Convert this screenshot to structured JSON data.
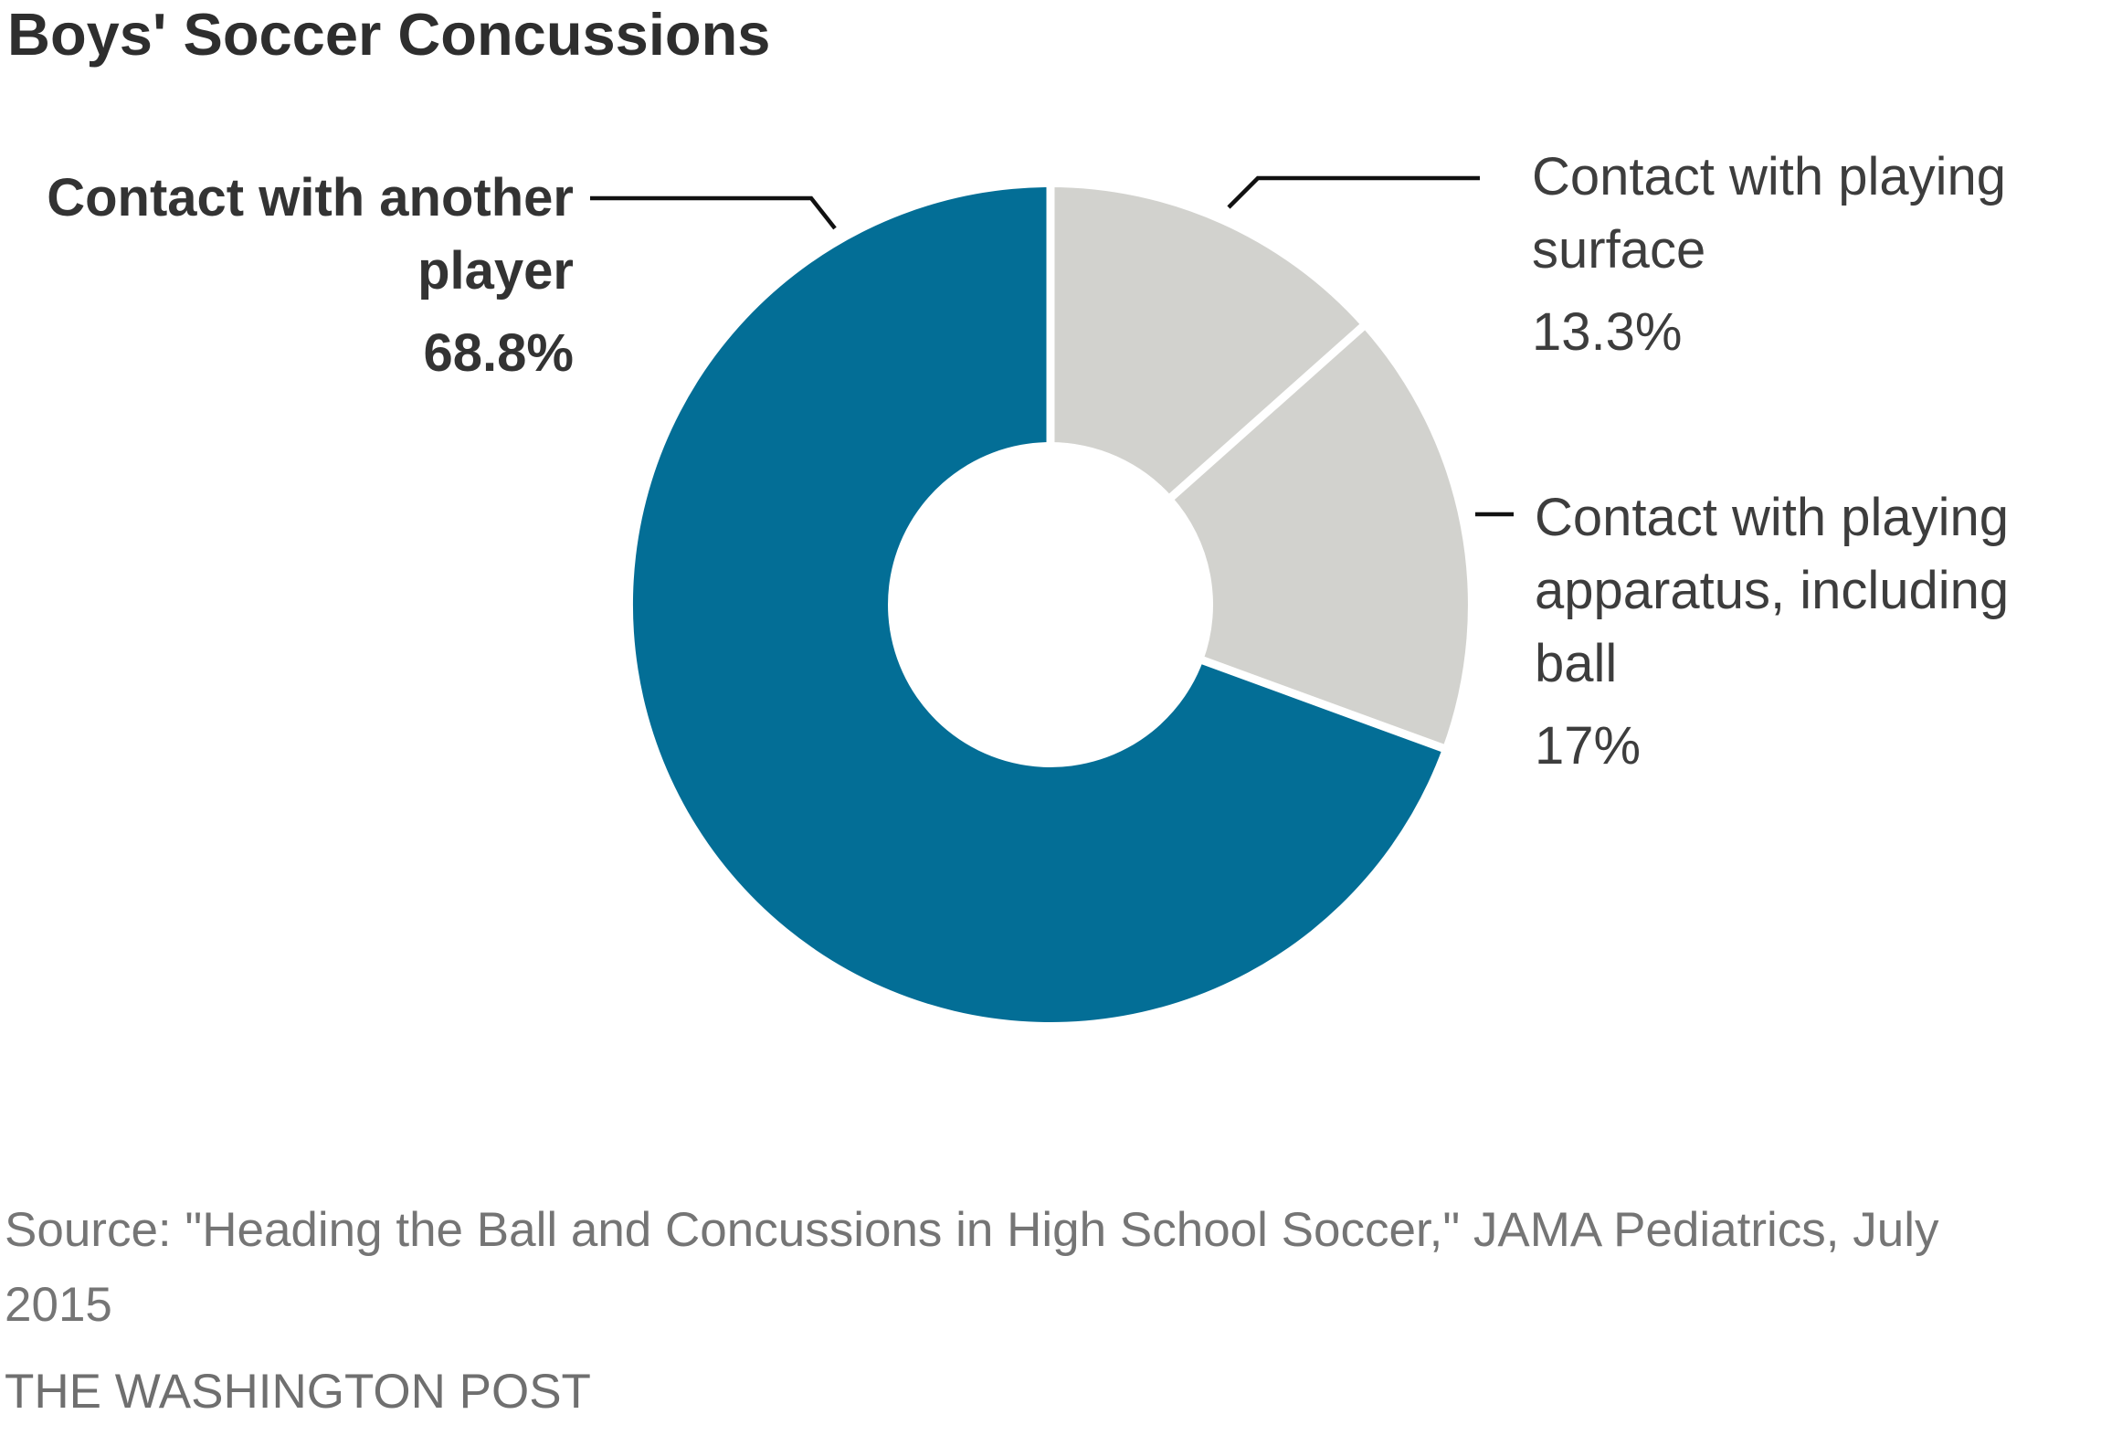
{
  "title": "Boys' Soccer Concussions",
  "colors": {
    "accent_blue": "#036e96",
    "neutral_gray": "#d2d2ce",
    "separator_white": "#ffffff",
    "callout_line": "#111111",
    "title_text": "#2e2e2e",
    "label_text": "#3d3d3d",
    "source_text": "#757575",
    "credit_text": "#6f6f6f"
  },
  "chart_data": {
    "type": "pie",
    "subtype": "donut",
    "title": "Boys' Soccer Concussions",
    "start_angle_deg": 0,
    "direction": "clockwise",
    "inner_radius_ratio": 0.39,
    "legend_position": "none",
    "segments": [
      {
        "label": "Contact with playing surface",
        "value": 13.3,
        "display_value": "13.3%",
        "color": "#d2d2ce"
      },
      {
        "label": "Contact with playing apparatus, including ball",
        "value": 17,
        "display_value": "17%",
        "color": "#d2d2ce"
      },
      {
        "label": "Contact with another player",
        "value": 68.8,
        "display_value": "68.8%",
        "color": "#036e96"
      }
    ]
  },
  "callouts": {
    "left": {
      "lines": [
        "Contact with another",
        "player"
      ],
      "pct": "68.8%"
    },
    "right_top": {
      "lines": [
        "Contact with playing",
        "surface"
      ],
      "pct": "13.3%"
    },
    "right_mid": {
      "lines": [
        "Contact with playing",
        "apparatus, including",
        "ball"
      ],
      "pct": "17%"
    }
  },
  "footer": {
    "source_lines": [
      "Source: \"Heading the Ball and Concussions in High School Soccer,\" JAMA Pediatrics, July",
      "2015"
    ],
    "credit": "THE WASHINGTON POST"
  }
}
